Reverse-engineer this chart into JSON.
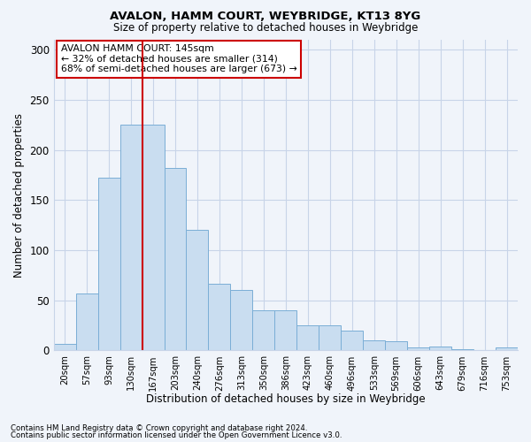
{
  "title1": "AVALON, HAMM COURT, WEYBRIDGE, KT13 8YG",
  "title2": "Size of property relative to detached houses in Weybridge",
  "xlabel": "Distribution of detached houses by size in Weybridge",
  "ylabel": "Number of detached properties",
  "bar_labels": [
    "20sqm",
    "57sqm",
    "93sqm",
    "130sqm",
    "167sqm",
    "203sqm",
    "240sqm",
    "276sqm",
    "313sqm",
    "350sqm",
    "386sqm",
    "423sqm",
    "460sqm",
    "496sqm",
    "533sqm",
    "569sqm",
    "606sqm",
    "643sqm",
    "679sqm",
    "716sqm",
    "753sqm"
  ],
  "bar_values": [
    7,
    57,
    172,
    225,
    225,
    182,
    120,
    67,
    60,
    40,
    40,
    25,
    25,
    20,
    10,
    9,
    3,
    4,
    1,
    0,
    3
  ],
  "bar_color": "#c9ddf0",
  "bar_edge_color": "#7aaed6",
  "annotation_title": "AVALON HAMM COURT: 145sqm",
  "annotation_line1": "← 32% of detached houses are smaller (314)",
  "annotation_line2": "68% of semi-detached houses are larger (673) →",
  "annotation_box_color": "#ffffff",
  "annotation_box_edge": "#cc0000",
  "line_color": "#cc0000",
  "ylim": [
    0,
    310
  ],
  "yticks": [
    0,
    50,
    100,
    150,
    200,
    250,
    300
  ],
  "footnote1": "Contains HM Land Registry data © Crown copyright and database right 2024.",
  "footnote2": "Contains public sector information licensed under the Open Government Licence v3.0.",
  "bg_color": "#f0f4fa",
  "grid_color": "#c8d4e8"
}
